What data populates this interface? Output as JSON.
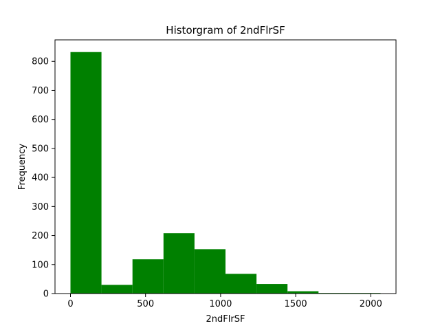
{
  "chart_data": {
    "type": "bar",
    "title": "Historgram of 2ndFlrSF",
    "xlabel": "2ndFlrSF",
    "ylabel": "Frequency",
    "bin_edges": [
      0,
      206.5,
      413,
      619.5,
      826,
      1032.5,
      1239,
      1445.5,
      1652,
      1858.5,
      2065
    ],
    "values": [
      832,
      30,
      118,
      208,
      153,
      68,
      33,
      8,
      2,
      2
    ],
    "xlim": [
      -103,
      2168
    ],
    "ylim": [
      0,
      874
    ],
    "xticks": [
      0,
      500,
      1000,
      1500,
      2000
    ],
    "yticks": [
      0,
      100,
      200,
      300,
      400,
      500,
      600,
      700,
      800
    ],
    "bar_color": "#008000"
  }
}
